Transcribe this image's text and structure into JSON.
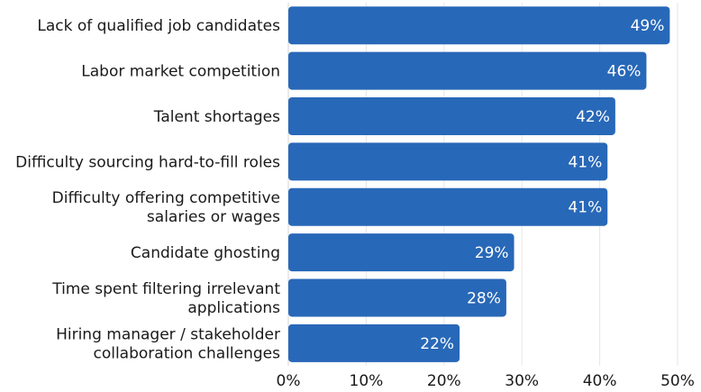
{
  "chart_data": {
    "type": "bar",
    "orientation": "horizontal",
    "categories": [
      [
        "Lack of qualified job candidates"
      ],
      [
        "Labor market competition"
      ],
      [
        "Talent shortages"
      ],
      [
        "Difficulty sourcing hard-to-fill roles"
      ],
      [
        "Difficulty offering competitive",
        "salaries or wages"
      ],
      [
        "Candidate ghosting"
      ],
      [
        "Time spent filtering irrelevant",
        "applications"
      ],
      [
        "Hiring manager / stakeholder",
        "collaboration challenges"
      ]
    ],
    "values": [
      49,
      46,
      42,
      41,
      41,
      29,
      28,
      22
    ],
    "value_labels": [
      "49%",
      "46%",
      "42%",
      "41%",
      "41%",
      "29%",
      "28%",
      "22%"
    ],
    "xlim": [
      0,
      50
    ],
    "xticks": [
      0,
      10,
      20,
      30,
      40,
      50
    ],
    "xtick_labels": [
      "0%",
      "10%",
      "20%",
      "30%",
      "40%",
      "50%"
    ],
    "grid": true,
    "bar_color": "#2868b8",
    "title": "",
    "xlabel": "",
    "ylabel": ""
  }
}
